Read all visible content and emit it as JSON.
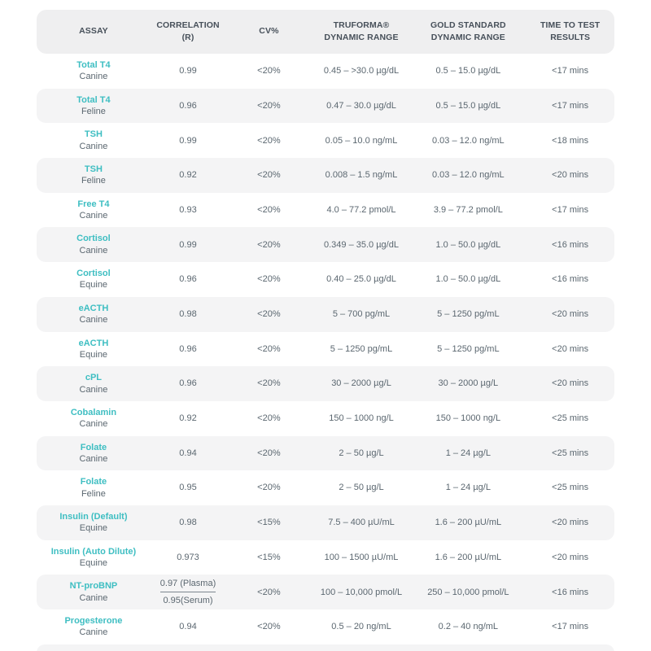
{
  "colors": {
    "accent_teal": "#3EBEC2",
    "body_text": "#5B6770",
    "header_text": "#47505A",
    "row_alt_bg": "#F4F4F5",
    "header_bg": "#EFEFF0"
  },
  "table": {
    "columns": [
      {
        "id": "assay",
        "label": "ASSAY"
      },
      {
        "id": "correlation",
        "label": "CORRELATION (R)"
      },
      {
        "id": "cv",
        "label": "CV%"
      },
      {
        "id": "truforma_range",
        "label": "TRUFORMA®\nDYNAMIC RANGE"
      },
      {
        "id": "gold_range",
        "label": "GOLD STANDARD\nDYNAMIC RANGE"
      },
      {
        "id": "time",
        "label": "TIME TO TEST\nRESULTS"
      }
    ],
    "rows": [
      {
        "assay": "Total T4",
        "species": "Canine",
        "correlation": "0.99",
        "cv": "<20%",
        "truforma_range": "0.45 – >30.0 µg/dL",
        "gold_range": "0.5 – 15.0 µg/dL",
        "time": "<17 mins"
      },
      {
        "assay": "Total T4",
        "species": "Feline",
        "correlation": "0.96",
        "cv": "<20%",
        "truforma_range": "0.47 – 30.0 µg/dL",
        "gold_range": "0.5 – 15.0 µg/dL",
        "time": "<17 mins"
      },
      {
        "assay": "TSH",
        "species": "Canine",
        "correlation": "0.99",
        "cv": "<20%",
        "truforma_range": "0.05 – 10.0 ng/mL",
        "gold_range": "0.03 – 12.0 ng/mL",
        "time": "<18 mins"
      },
      {
        "assay": "TSH",
        "species": "Feline",
        "correlation": "0.92",
        "cv": "<20%",
        "truforma_range": "0.008 – 1.5 ng/mL",
        "gold_range": "0.03 – 12.0 ng/mL",
        "time": "<20 mins"
      },
      {
        "assay": "Free T4",
        "species": "Canine",
        "correlation": "0.93",
        "cv": "<20%",
        "truforma_range": "4.0 – 77.2 pmol/L",
        "gold_range": "3.9 – 77.2 pmol/L",
        "time": "<17 mins"
      },
      {
        "assay": "Cortisol",
        "species": "Canine",
        "correlation": "0.99",
        "cv": "<20%",
        "truforma_range": "0.349 – 35.0 µg/dL",
        "gold_range": "1.0 – 50.0 µg/dL",
        "time": "<16 mins"
      },
      {
        "assay": "Cortisol",
        "species": "Equine",
        "correlation": "0.96",
        "cv": "<20%",
        "truforma_range": "0.40 – 25.0 µg/dL",
        "gold_range": "1.0 – 50.0 µg/dL",
        "time": "<16 mins"
      },
      {
        "assay": "eACTH",
        "species": "Canine",
        "correlation": "0.98",
        "cv": "<20%",
        "truforma_range": "5 – 700 pg/mL",
        "gold_range": "5 – 1250 pg/mL",
        "time": "<20 mins"
      },
      {
        "assay": "eACTH",
        "species": "Equine",
        "correlation": "0.96",
        "cv": "<20%",
        "truforma_range": "5 – 1250 pg/mL",
        "gold_range": "5 – 1250 pg/mL",
        "time": "<20 mins"
      },
      {
        "assay": "cPL",
        "species": "Canine",
        "correlation": "0.96",
        "cv": "<20%",
        "truforma_range": "30 – 2000 µg/L",
        "gold_range": "30 – 2000 µg/L",
        "time": "<20 mins"
      },
      {
        "assay": "Cobalamin",
        "species": "Canine",
        "correlation": "0.92",
        "cv": "<20%",
        "truforma_range": "150 – 1000 ng/L",
        "gold_range": "150 – 1000 ng/L",
        "time": "<25 mins"
      },
      {
        "assay": "Folate",
        "species": "Canine",
        "correlation": "0.94",
        "cv": "<20%",
        "truforma_range": "2 – 50 µg/L",
        "gold_range": "1 – 24 µg/L",
        "time": "<25 mins"
      },
      {
        "assay": "Folate",
        "species": "Feline",
        "correlation": "0.95",
        "cv": "<20%",
        "truforma_range": "2 – 50 µg/L",
        "gold_range": "1 – 24 µg/L",
        "time": "<25 mins"
      },
      {
        "assay": "Insulin (Default)",
        "species": "Equine",
        "correlation": "0.98",
        "cv": "<15%",
        "truforma_range": "7.5 – 400 µU/mL",
        "gold_range": "1.6 – 200 µU/mL",
        "time": "<20 mins"
      },
      {
        "assay": "Insulin (Auto Dilute)",
        "species": "Equine",
        "correlation": "0.973",
        "cv": "<15%",
        "truforma_range": "100 – 1500 µU/mL",
        "gold_range": "1.6 – 200 µU/mL",
        "time": "<20 mins"
      },
      {
        "assay": "NT-proBNP",
        "species": "Canine",
        "correlation": "0.97 (Plasma)",
        "correlation2": "0.95(Serum)",
        "cv": "<20%",
        "truforma_range": "100 – 10,000 pmol/L",
        "gold_range": "250 – 10,000 pmol/L",
        "time": "<16 mins"
      },
      {
        "assay": "Progesterone",
        "species": "Canine",
        "correlation": "0.94",
        "cv": "<20%",
        "truforma_range": "0.5 – 20 ng/mL",
        "gold_range": "0.2 – 40 ng/mL",
        "time": "<17 mins"
      }
    ]
  }
}
